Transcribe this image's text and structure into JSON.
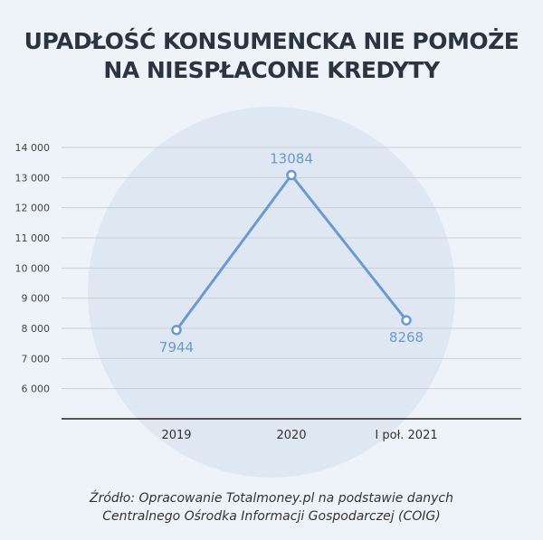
{
  "title_lines": [
    "UPADŁOŚĆ KONSUMENCKA NIE POMOŻE",
    "NA NIESPŁACONE KREDYTY"
  ],
  "source_lines": [
    "Źródło: Opracowanie Totalmoney.pl na podstawie danych",
    "Centralnego Ośrodka Informacji Gospodarczej (COIG)"
  ],
  "colors": {
    "background": "#eef3fa",
    "circle": "#dfe7f2",
    "line": "#6a9ad0",
    "label": "#6a9ad0",
    "axis": "#222222",
    "grid": "#c9cfd8"
  },
  "chart_data": {
    "type": "line",
    "categories": [
      "2019",
      "2020",
      "I poł. 2021"
    ],
    "values": [
      7944,
      13084,
      8268
    ],
    "data_labels": [
      "7944",
      "13084",
      "8268"
    ],
    "yticks": [
      6000,
      7000,
      8000,
      9000,
      10000,
      11000,
      12000,
      13000,
      14000
    ],
    "ytick_labels": [
      "6 000",
      "7 000",
      "8 000",
      "9 000",
      "10 000",
      "11 000",
      "12 000",
      "13 000",
      "14 000"
    ],
    "ylim": [
      5000,
      14000
    ],
    "grid": true,
    "legend": "none"
  }
}
